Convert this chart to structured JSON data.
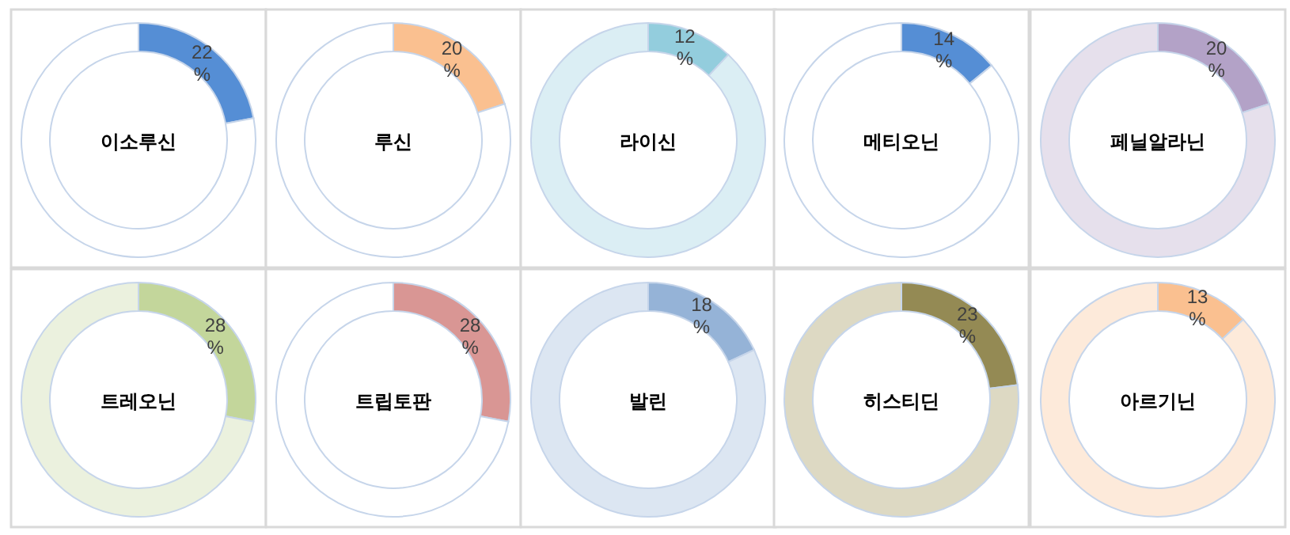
{
  "chart_data": [
    {
      "type": "donut",
      "title": "이소루신",
      "categories": [
        null,
        null
      ],
      "values": [
        22,
        78
      ],
      "colors": [
        "#558ed5",
        "#ffffff"
      ],
      "value_labels": [
        "22%",
        null
      ]
    },
    {
      "type": "donut",
      "title": "루신",
      "categories": [
        null,
        null
      ],
      "values": [
        20,
        80
      ],
      "colors": [
        "#fac090",
        "#ffffff"
      ],
      "value_labels": [
        "20%",
        null
      ]
    },
    {
      "type": "donut",
      "title": "라이신",
      "categories": [
        null,
        null
      ],
      "values": [
        12,
        88
      ],
      "colors": [
        "#93cddd",
        "#dbeef4"
      ],
      "value_labels": [
        "12%",
        null
      ]
    },
    {
      "type": "donut",
      "title": "메티오닌",
      "categories": [
        null,
        null
      ],
      "values": [
        14,
        86
      ],
      "colors": [
        "#558ed5",
        "#ffffff"
      ],
      "value_labels": [
        "14%",
        null
      ]
    },
    {
      "type": "donut",
      "title": "페닐알라닌",
      "categories": [
        null,
        null
      ],
      "values": [
        20,
        80
      ],
      "colors": [
        "#b3a2c7",
        "#e6e0ec"
      ],
      "value_labels": [
        "20%",
        null
      ]
    },
    {
      "type": "donut",
      "title": "트레오닌",
      "categories": [
        null,
        null
      ],
      "values": [
        28,
        72
      ],
      "colors": [
        "#c3d69b",
        "#ebf1de"
      ],
      "value_labels": [
        "28%",
        null
      ]
    },
    {
      "type": "donut",
      "title": "트립토판",
      "categories": [
        null,
        null
      ],
      "values": [
        28,
        72
      ],
      "colors": [
        "#d99694",
        "#ffffff"
      ],
      "value_labels": [
        "28%",
        null
      ]
    },
    {
      "type": "donut",
      "title": "발린",
      "categories": [
        null,
        null
      ],
      "values": [
        18,
        82
      ],
      "colors": [
        "#95b3d7",
        "#dce6f2"
      ],
      "value_labels": [
        "18%",
        null
      ]
    },
    {
      "type": "donut",
      "title": "히스티딘",
      "categories": [
        null,
        null
      ],
      "values": [
        23,
        77
      ],
      "colors": [
        "#948a54",
        "#ddd9c3"
      ],
      "value_labels": [
        "23%",
        null
      ]
    },
    {
      "type": "donut",
      "title": "아르기닌",
      "categories": [
        null,
        null
      ],
      "values": [
        13,
        87
      ],
      "colors": [
        "#fac090",
        "#fdeada"
      ],
      "value_labels": [
        "13%",
        null
      ]
    }
  ]
}
